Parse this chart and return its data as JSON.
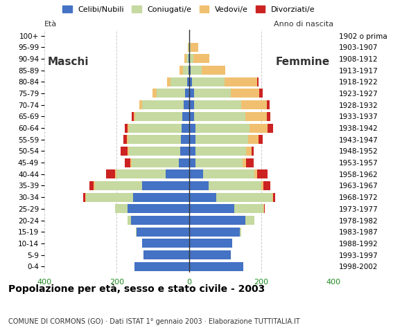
{
  "age_groups": [
    "0-4",
    "5-9",
    "10-14",
    "15-19",
    "20-24",
    "25-29",
    "30-34",
    "35-39",
    "40-44",
    "45-49",
    "50-54",
    "55-59",
    "60-64",
    "65-69",
    "70-74",
    "75-79",
    "80-84",
    "85-89",
    "90-94",
    "95-99",
    "100+"
  ],
  "birth_years": [
    "1998-2002",
    "1993-1997",
    "1988-1992",
    "1983-1987",
    "1978-1982",
    "1973-1977",
    "1968-1972",
    "1963-1967",
    "1958-1962",
    "1953-1957",
    "1948-1952",
    "1943-1947",
    "1938-1942",
    "1933-1937",
    "1928-1932",
    "1923-1927",
    "1918-1922",
    "1913-1917",
    "1908-1912",
    "1903-1907",
    "1902 o prima"
  ],
  "males": {
    "celibi": [
      150,
      125,
      130,
      145,
      160,
      170,
      155,
      130,
      65,
      28,
      25,
      22,
      20,
      18,
      15,
      10,
      5,
      2,
      2,
      0,
      0
    ],
    "coniugati": [
      0,
      0,
      0,
      2,
      10,
      35,
      130,
      130,
      135,
      130,
      140,
      145,
      145,
      130,
      115,
      80,
      45,
      15,
      5,
      2,
      0
    ],
    "vedovi": [
      0,
      0,
      0,
      0,
      0,
      0,
      2,
      3,
      5,
      5,
      5,
      5,
      5,
      5,
      8,
      10,
      10,
      10,
      5,
      2,
      0
    ],
    "divorziati": [
      0,
      0,
      0,
      0,
      0,
      0,
      5,
      12,
      25,
      15,
      18,
      10,
      8,
      5,
      0,
      0,
      0,
      0,
      0,
      0,
      0
    ]
  },
  "females": {
    "celibi": [
      150,
      115,
      120,
      140,
      155,
      125,
      75,
      55,
      40,
      18,
      18,
      18,
      18,
      15,
      15,
      15,
      8,
      5,
      2,
      0,
      0
    ],
    "coniugati": [
      0,
      0,
      0,
      5,
      25,
      80,
      155,
      145,
      140,
      130,
      140,
      145,
      150,
      140,
      130,
      100,
      90,
      30,
      10,
      5,
      0
    ],
    "vedovi": [
      0,
      0,
      0,
      0,
      1,
      2,
      3,
      5,
      8,
      10,
      15,
      30,
      50,
      60,
      70,
      80,
      90,
      65,
      45,
      20,
      2
    ],
    "divorziati": [
      0,
      0,
      0,
      0,
      0,
      2,
      5,
      20,
      30,
      20,
      5,
      10,
      15,
      10,
      8,
      8,
      5,
      0,
      0,
      0,
      0
    ]
  },
  "colors": {
    "celibi": "#4472c4",
    "coniugati": "#c5d9a0",
    "vedovi": "#f0c070",
    "divorziati": "#cc2222"
  },
  "xlim": 400,
  "title": "Popolazione per età, sesso e stato civile - 2003",
  "subtitle": "COMUNE DI CORMONS (GO) · Dati ISTAT 1° gennaio 2003 · Elaborazione TUTTITALIA.IT",
  "legend_labels": [
    "Celibi/Nubili",
    "Coniugati/e",
    "Vedovi/e",
    "Divorziati/e"
  ],
  "xlabel_left": "Maschi",
  "xlabel_right": "Femmine",
  "ylabel_left": "Età",
  "ylabel_right": "Anno di nascita",
  "bg_color": "#ffffff",
  "grid_color": "#cccccc"
}
